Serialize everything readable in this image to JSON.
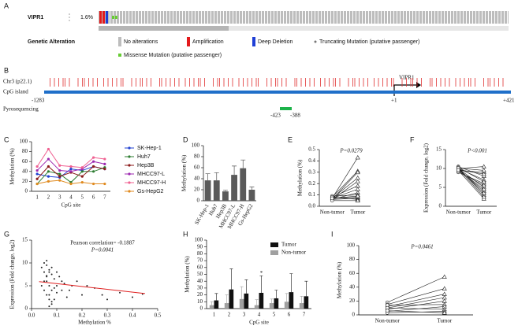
{
  "oncoprint": {
    "label": "A",
    "gene": "VIPR1",
    "frequency": "1.6%",
    "legend_title": "Genetic Alteration",
    "legend": [
      {
        "label": "No alterations",
        "color": "#bdbdbd"
      },
      {
        "label": "Amplification",
        "color": "#e41a1c"
      },
      {
        "label": "Deep Deletion",
        "color": "#1f3fd6"
      },
      {
        "label": "Truncating Mutation (putative passenger)",
        "color": "#777777"
      },
      {
        "label": "Missense Mutation (putative passenger)",
        "color": "#66cc33"
      }
    ]
  },
  "gene_diagram": {
    "label": "B",
    "gene": "VIPR1",
    "tracks": [
      "Chr3 (p22.1)",
      "CpG island",
      "Pyrosequencing"
    ],
    "positions": [
      "-1283",
      "+1",
      "+421"
    ],
    "primer": [
      "-423",
      "-388"
    ]
  },
  "chart_data": [
    {
      "type": "line",
      "label": "C",
      "x_label": "CpG site",
      "y_label": "Methylation (%)",
      "categories": [
        "1",
        "2",
        "3",
        "4",
        "5",
        "6",
        "7"
      ],
      "ylim": [
        0,
        100
      ],
      "yticks": [
        0,
        20,
        40,
        60,
        80,
        100
      ],
      "series": [
        {
          "name": "SK-Hep-1",
          "color": "#2040d0",
          "values": [
            35,
            30,
            28,
            45,
            42,
            50,
            45
          ]
        },
        {
          "name": "Huh7",
          "color": "#2e7d32",
          "values": [
            15,
            40,
            35,
            18,
            40,
            40,
            48
          ]
        },
        {
          "name": "Hep3B",
          "color": "#8b1a1a",
          "values": [
            25,
            50,
            30,
            38,
            30,
            50,
            45
          ]
        },
        {
          "name": "MHCC97-L",
          "color": "#9c27b0",
          "values": [
            42,
            65,
            42,
            40,
            45,
            60,
            55
          ]
        },
        {
          "name": "MHCC97-H",
          "color": "#f06292",
          "values": [
            50,
            85,
            52,
            50,
            48,
            68,
            65
          ]
        },
        {
          "name": "Gs-HepG2",
          "color": "#e08a1e",
          "values": [
            15,
            20,
            22,
            15,
            18,
            15,
            15
          ]
        }
      ]
    },
    {
      "type": "bar",
      "label": "D",
      "y_label": "Methylation (%)",
      "color": "#5a5a5a",
      "categories": [
        "SK-Hep-1",
        "Huh7",
        "Hep3B",
        "MHCC97-L",
        "MHCC97-H",
        "Gs-HepG2"
      ],
      "values": [
        37,
        37,
        17,
        47,
        59,
        20
      ],
      "errors": [
        12,
        14,
        2,
        16,
        15,
        5
      ],
      "ylim": [
        0,
        100
      ],
      "yticks": [
        0,
        20,
        40,
        60,
        80,
        100
      ]
    },
    {
      "type": "paired",
      "label": "E",
      "annotation": "P=0.0279",
      "y_label": "Methylation (%)",
      "categories": [
        "Non-tumor",
        "Tumor"
      ],
      "ylim": [
        0,
        0.5
      ],
      "yticks": [
        {
          "value": 0,
          "label": "0.0"
        },
        0.1,
        0.2,
        0.3,
        0.4,
        0.5
      ],
      "pairs": [
        [
          0.07,
          0.43
        ],
        [
          0.08,
          0.31
        ],
        [
          0.06,
          0.3
        ],
        [
          0.07,
          0.25
        ],
        [
          0.06,
          0.22
        ],
        [
          0.08,
          0.18
        ],
        [
          0.07,
          0.15
        ],
        [
          0.06,
          0.12
        ],
        [
          0.09,
          0.1
        ],
        [
          0.07,
          0.08
        ],
        [
          0.06,
          0.07
        ],
        [
          0.08,
          0.06
        ],
        [
          0.05,
          0.05
        ],
        [
          0.07,
          0.09
        ]
      ]
    },
    {
      "type": "paired",
      "label": "F",
      "annotation": "P<0.001",
      "y_label": "Expression (Fold change, log2)",
      "categories": [
        "Non-tumor",
        "Tumor"
      ],
      "ylim": [
        0,
        15
      ],
      "yticks": [
        0,
        5,
        10,
        15
      ],
      "pairs": [
        [
          10,
          10.5
        ],
        [
          9.5,
          9
        ],
        [
          10.5,
          8
        ],
        [
          9,
          6
        ],
        [
          10,
          5
        ],
        [
          9.8,
          4
        ],
        [
          10.2,
          3
        ],
        [
          9.5,
          2
        ],
        [
          10,
          7
        ],
        [
          9.7,
          8.5
        ],
        [
          10.3,
          6.5
        ],
        [
          9.2,
          5.5
        ],
        [
          10,
          3.5
        ],
        [
          9.9,
          2.5
        ],
        [
          10.1,
          9.5
        ],
        [
          9.6,
          4.5
        ]
      ]
    },
    {
      "type": "scatter",
      "label": "G",
      "annotations": [
        "Pearson correlation= -0.1887",
        "P=0.0041"
      ],
      "x_label": "Methylation %",
      "y_label": "Expression (Fold change, log2)",
      "xlim": [
        0,
        0.5
      ],
      "xticks": [
        {
          "value": 0,
          "label": "0.0"
        },
        0.1,
        0.2,
        0.3,
        0.4,
        0.5
      ],
      "ylim": [
        0,
        15
      ],
      "yticks": [
        0,
        5,
        10,
        15
      ],
      "color": "#222222",
      "trend_color": "#e02020",
      "x": [
        0.04,
        0.05,
        0.05,
        0.06,
        0.06,
        0.06,
        0.07,
        0.07,
        0.07,
        0.08,
        0.08,
        0.08,
        0.09,
        0.09,
        0.1,
        0.1,
        0.11,
        0.12,
        0.05,
        0.06,
        0.07,
        0.08,
        0.09,
        0.1,
        0.13,
        0.15,
        0.18,
        0.2,
        0.22,
        0.25,
        0.28,
        0.3,
        0.35,
        0.4,
        0.44,
        0.05,
        0.06,
        0.07,
        0.08,
        0.04,
        0.12,
        0.14,
        0.16,
        0.06,
        0.07
      ],
      "y": [
        9,
        8,
        10,
        7,
        9.5,
        6,
        8.5,
        5,
        3,
        7.5,
        9,
        4,
        6.5,
        2,
        8,
        5,
        7,
        6,
        4,
        3,
        2,
        1.5,
        4.5,
        3.5,
        5.5,
        4,
        6,
        3,
        5,
        4.5,
        3,
        2,
        3.5,
        2.5,
        3.2,
        6,
        7.2,
        8,
        1,
        5,
        4,
        2.5,
        5,
        10.5,
        0.5
      ],
      "trend": {
        "x": [
          0.03,
          0.45
        ],
        "y": [
          5.9,
          3.3
        ]
      }
    },
    {
      "type": "grouped_bar",
      "label": "H",
      "annotation": "*",
      "x_label": "CpG site",
      "y_label": "Methylation (%)",
      "categories": [
        "1",
        "2",
        "3",
        "4",
        "5",
        "6",
        "7"
      ],
      "ylim": [
        0,
        100
      ],
      "yticks": [
        0,
        10,
        20,
        30,
        40,
        50,
        60,
        70,
        80,
        90,
        100
      ],
      "series": [
        {
          "name": "Tumor",
          "color": "#111111",
          "values": [
            12,
            28,
            22,
            23,
            15,
            24,
            18
          ],
          "errors": [
            10,
            30,
            20,
            25,
            12,
            27,
            22
          ]
        },
        {
          "name": "Non-tumor",
          "color": "#a0a0a0",
          "values": [
            5,
            8,
            14,
            5,
            8,
            10,
            8
          ],
          "errors": [
            5,
            12,
            18,
            8,
            6,
            12,
            10
          ]
        }
      ]
    },
    {
      "type": "paired",
      "label": "I",
      "annotation": "P=0.0461",
      "y_label": "Methylation (%)",
      "categories": [
        "Non-tumor",
        "Tumor"
      ],
      "ylim": [
        0,
        100
      ],
      "yticks": [
        0,
        20,
        40,
        60,
        80,
        100
      ],
      "pairs": [
        [
          18,
          55
        ],
        [
          15,
          38
        ],
        [
          12,
          30
        ],
        [
          10,
          25
        ],
        [
          8,
          20
        ],
        [
          14,
          15
        ],
        [
          5,
          12
        ],
        [
          10,
          8
        ],
        [
          3,
          5
        ],
        [
          6,
          3
        ]
      ]
    }
  ]
}
